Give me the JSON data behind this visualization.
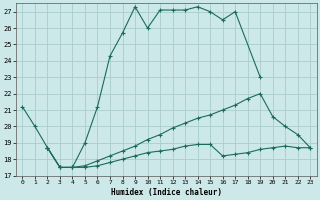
{
  "xlabel": "Humidex (Indice chaleur)",
  "background_color": "#cde8e8",
  "grid_color": "#aacccc",
  "line_color": "#1a6b5a",
  "ylim": [
    17,
    27.5
  ],
  "xlim": [
    -0.5,
    23.5
  ],
  "yticks": [
    17,
    18,
    19,
    20,
    21,
    22,
    23,
    24,
    25,
    26,
    27
  ],
  "xticks": [
    0,
    1,
    2,
    3,
    4,
    5,
    6,
    7,
    8,
    9,
    10,
    11,
    12,
    13,
    14,
    15,
    16,
    17,
    18,
    19,
    20,
    21,
    22,
    23
  ],
  "curve1_x": [
    0,
    1,
    2,
    3,
    4,
    5,
    6,
    7,
    8,
    9,
    10,
    11,
    12,
    13,
    14,
    15,
    16,
    17,
    19
  ],
  "curve1_y": [
    21.2,
    20.0,
    18.7,
    17.5,
    17.5,
    19.0,
    21.2,
    24.3,
    25.7,
    27.3,
    26.0,
    27.1,
    27.1,
    27.1,
    27.3,
    27.0,
    26.5,
    27.0,
    23.0
  ],
  "curve2_x": [
    2,
    3,
    4,
    5,
    6,
    7,
    8,
    9,
    10,
    11,
    12,
    13,
    14,
    15,
    16,
    17,
    18,
    19,
    20,
    21,
    22,
    23
  ],
  "curve2_y": [
    18.7,
    17.5,
    17.5,
    17.6,
    17.9,
    18.2,
    18.5,
    18.8,
    19.2,
    19.5,
    19.9,
    20.2,
    20.5,
    20.7,
    21.0,
    21.3,
    21.7,
    22.0,
    20.6,
    20.0,
    19.5,
    18.7
  ],
  "curve3_x": [
    2,
    3,
    4,
    5,
    6,
    7,
    8,
    9,
    10,
    11,
    12,
    13,
    14,
    15,
    16,
    17,
    18,
    19,
    20,
    21,
    22,
    23
  ],
  "curve3_y": [
    18.7,
    17.5,
    17.5,
    17.5,
    17.6,
    17.8,
    18.0,
    18.2,
    18.4,
    18.5,
    18.6,
    18.8,
    18.9,
    18.9,
    18.2,
    18.3,
    18.4,
    18.6,
    18.7,
    18.8,
    18.7,
    18.7
  ]
}
